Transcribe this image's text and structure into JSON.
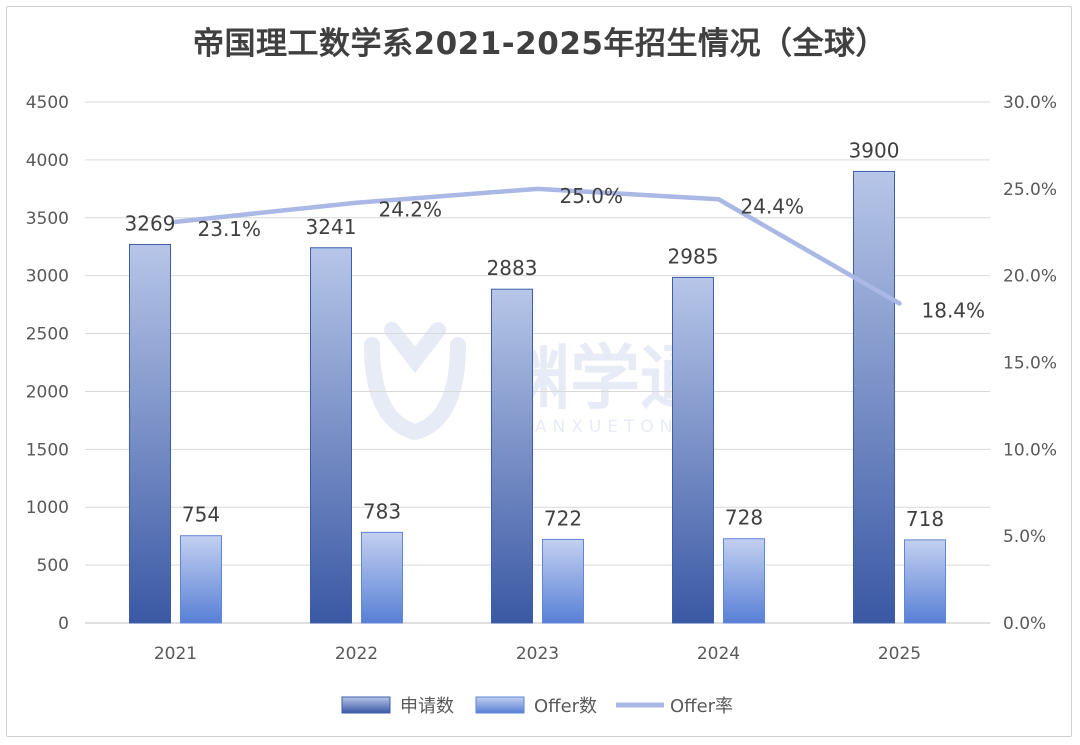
{
  "chart_data": {
    "type": "bar",
    "title": "帝国理工数学系2021-2025年招生情况（全球）",
    "categories": [
      "2021",
      "2022",
      "2023",
      "2024",
      "2025"
    ],
    "series": [
      {
        "name": "申请数",
        "type": "bar",
        "axis": "left",
        "values": [
          3269,
          3241,
          2883,
          2985,
          3900
        ],
        "color": "#3d5ea8"
      },
      {
        "name": "Offer数",
        "type": "bar",
        "axis": "left",
        "values": [
          754,
          783,
          722,
          728,
          718
        ],
        "color": "#5f86d8"
      },
      {
        "name": "Offer率",
        "type": "line",
        "axis": "right",
        "values": [
          23.1,
          24.2,
          25.0,
          24.4,
          18.4
        ],
        "labels": [
          "23.1%",
          "24.2%",
          "25.0%",
          "24.4%",
          "18.4%"
        ],
        "color": "#a9b8e4"
      }
    ],
    "ylim": [
      0,
      4500
    ],
    "yticks": [
      "0",
      "500",
      "1000",
      "1500",
      "2000",
      "2500",
      "3000",
      "3500",
      "4000",
      "4500"
    ],
    "y2lim": [
      0,
      30
    ],
    "y2ticks": [
      "0.0%",
      "5.0%",
      "10.0%",
      "15.0%",
      "20.0%",
      "25.0%",
      "30.0%"
    ],
    "grid": true,
    "legend_position": "bottom"
  },
  "watermark": {
    "brand": "渊学通",
    "sub": "YUANXUETONG"
  }
}
